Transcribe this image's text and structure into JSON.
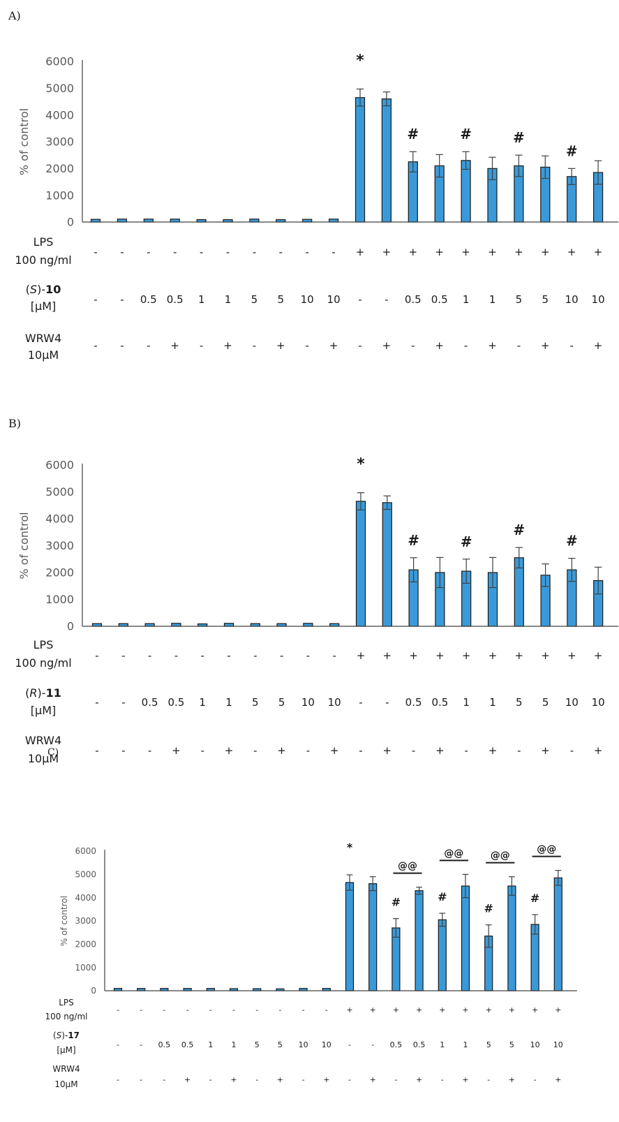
{
  "chart_data": [
    {
      "panel": "A)",
      "type": "bar",
      "ylabel": "% of control",
      "ylim": [
        0,
        6000
      ],
      "yticks": [
        "0",
        "1000",
        "2000",
        "3000",
        "4000",
        "5000",
        "6000"
      ],
      "values": [
        100,
        110,
        110,
        110,
        90,
        90,
        110,
        90,
        100,
        110,
        4650,
        4600,
        2250,
        2100,
        2300,
        2000,
        2100,
        2050,
        1700,
        1850
      ],
      "errors": [
        0,
        0,
        0,
        0,
        0,
        0,
        0,
        0,
        0,
        0,
        320,
        260,
        380,
        420,
        330,
        420,
        400,
        420,
        300,
        440
      ],
      "annotations": [
        "",
        "",
        "",
        "",
        "",
        "",
        "",
        "",
        "",
        "",
        "*",
        "",
        "#",
        "",
        "#",
        "",
        "#",
        "",
        "#",
        ""
      ],
      "bracket_labels": [],
      "rows": [
        {
          "label_lines": [
            "LPS",
            "100 ng/ml"
          ],
          "cells": [
            "-",
            "-",
            "-",
            "-",
            "-",
            "-",
            "-",
            "-",
            "-",
            "-",
            "+",
            "+",
            "+",
            "+",
            "+",
            "+",
            "+",
            "+",
            "+",
            "+"
          ]
        },
        {
          "label_prefix": "(",
          "label_italic": "S",
          "label_mid": ")-",
          "label_bold": "10",
          "label_line2": "[µM]",
          "cells": [
            "-",
            "-",
            "0.5",
            "0.5",
            "1",
            "1",
            "5",
            "5",
            "10",
            "10",
            "-",
            "-",
            "0.5",
            "0.5",
            "1",
            "1",
            "5",
            "5",
            "10",
            "10"
          ]
        },
        {
          "label_lines": [
            "WRW4",
            "10µM"
          ],
          "cells": [
            "-",
            "-",
            "-",
            "+",
            "-",
            "+",
            "-",
            "+",
            "-",
            "+",
            "-",
            "+",
            "-",
            "+",
            "-",
            "+",
            "-",
            "+",
            "-",
            "+"
          ]
        }
      ]
    },
    {
      "panel": "B)",
      "type": "bar",
      "ylabel": "% of control",
      "ylim": [
        0,
        6000
      ],
      "yticks": [
        "0",
        "1000",
        "2000",
        "3000",
        "4000",
        "5000",
        "6000"
      ],
      "values": [
        100,
        100,
        100,
        110,
        90,
        110,
        100,
        100,
        110,
        100,
        4650,
        4600,
        2100,
        2000,
        2050,
        2000,
        2550,
        1900,
        2100,
        1700
      ],
      "errors": [
        0,
        0,
        0,
        0,
        0,
        0,
        0,
        0,
        0,
        0,
        320,
        250,
        450,
        560,
        450,
        560,
        380,
        420,
        430,
        500
      ],
      "annotations": [
        "",
        "",
        "",
        "",
        "",
        "",
        "",
        "",
        "",
        "",
        "*",
        "",
        "#",
        "",
        "#",
        "",
        "#",
        "",
        "#",
        ""
      ],
      "bracket_labels": [],
      "rows": [
        {
          "label_lines": [
            "LPS",
            "100 ng/ml"
          ],
          "cells": [
            "-",
            "-",
            "-",
            "-",
            "-",
            "-",
            "-",
            "-",
            "-",
            "-",
            "+",
            "+",
            "+",
            "+",
            "+",
            "+",
            "+",
            "+",
            "+",
            "+"
          ]
        },
        {
          "label_prefix": "(",
          "label_italic": "R",
          "label_mid": ")-",
          "label_bold": "11",
          "label_line2": "[µM]",
          "cells": [
            "-",
            "-",
            "0.5",
            "0.5",
            "1",
            "1",
            "5",
            "5",
            "10",
            "10",
            "-",
            "-",
            "0.5",
            "0.5",
            "1",
            "1",
            "5",
            "5",
            "10",
            "10"
          ]
        },
        {
          "label_lines": [
            "WRW4",
            "10µM"
          ],
          "cells": [
            "-",
            "-",
            "-",
            "+",
            "-",
            "+",
            "-",
            "+",
            "-",
            "+",
            "-",
            "+",
            "-",
            "+",
            "-",
            "+",
            "-",
            "+",
            "-",
            "+"
          ]
        }
      ]
    },
    {
      "panel": "C)",
      "type": "bar",
      "ylabel": "% of control",
      "ylim": [
        0,
        6000
      ],
      "yticks": [
        "0",
        "1000",
        "2000",
        "3000",
        "4000",
        "5000",
        "6000"
      ],
      "values": [
        100,
        100,
        100,
        100,
        100,
        90,
        90,
        80,
        100,
        100,
        4650,
        4600,
        2700,
        4300,
        3050,
        4500,
        2350,
        4500,
        2850,
        4850
      ],
      "errors": [
        0,
        0,
        0,
        0,
        0,
        0,
        0,
        0,
        0,
        0,
        330,
        300,
        400,
        150,
        280,
        500,
        480,
        400,
        420,
        320
      ],
      "annotations": [
        "",
        "",
        "",
        "",
        "",
        "",
        "",
        "",
        "",
        "",
        "*",
        "",
        "#",
        "",
        "#",
        "",
        "#",
        "",
        "#",
        ""
      ],
      "bracket_labels": [
        "@@",
        "@@",
        "@@",
        "@@"
      ],
      "rows": [
        {
          "label_lines": [
            "LPS",
            "100 ng/ml"
          ],
          "cells": [
            "-",
            "-",
            "-",
            "-",
            "-",
            "-",
            "-",
            "-",
            "-",
            "-",
            "+",
            "+",
            "+",
            "+",
            "+",
            "+",
            "+",
            "+",
            "+",
            "+"
          ]
        },
        {
          "label_prefix": "(",
          "label_italic": "S",
          "label_mid": ")-",
          "label_bold": "17",
          "label_line2": "[µM]",
          "cells": [
            "-",
            "-",
            "0.5",
            "0.5",
            "1",
            "1",
            "5",
            "5",
            "10",
            "10",
            "-",
            "-",
            "0.5",
            "0.5",
            "1",
            "1",
            "5",
            "5",
            "10",
            "10"
          ]
        },
        {
          "label_lines": [
            "WRW4",
            "10µM"
          ],
          "cells": [
            "-",
            "-",
            "-",
            "+",
            "-",
            "+",
            "-",
            "+",
            "-",
            "+",
            "-",
            "+",
            "-",
            "+",
            "-",
            "+",
            "-",
            "+",
            "-",
            "+"
          ]
        }
      ]
    }
  ]
}
